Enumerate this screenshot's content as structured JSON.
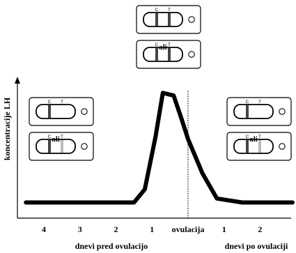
{
  "figure": {
    "y_axis_label": "koncentracije LH",
    "x_tick_labels": [
      "4",
      "3",
      "2",
      "1",
      "ovulacija",
      "1",
      "2"
    ],
    "left_axis_caption": "dnevi pred ovulacijo",
    "right_axis_caption": "dnevi po ovulaciji",
    "or_label": "ali",
    "test_window_labels": {
      "control": "C",
      "test": "T"
    }
  },
  "lh_curve": {
    "x": [
      -4.5,
      -1.5,
      -1.2,
      -0.9,
      -0.7,
      -0.4,
      -0.2,
      0,
      0.4,
      0.8,
      1.5,
      2.9
    ],
    "y": [
      0.5,
      0.5,
      1.5,
      5.5,
      8.8,
      8.6,
      7.0,
      5.3,
      2.7,
      0.8,
      0.5,
      0.5
    ],
    "ovulation_x": 0,
    "xlim": [
      -4.6,
      2.9
    ],
    "ylim": [
      0,
      9.5
    ]
  },
  "test_strips": [
    {
      "group": "top",
      "stack": 0,
      "control_line": "dark",
      "test_line": "dark"
    },
    {
      "group": "top",
      "stack": 1,
      "control_line": "dark",
      "test_line": "dark",
      "or_above": true
    },
    {
      "group": "left",
      "stack": 0,
      "control_line": "dark",
      "test_line": "none"
    },
    {
      "group": "left",
      "stack": 1,
      "control_line": "dark",
      "test_line": "light",
      "or_above": true
    },
    {
      "group": "right",
      "stack": 0,
      "control_line": "dark",
      "test_line": "none"
    },
    {
      "group": "right",
      "stack": 1,
      "control_line": "dark",
      "test_line": "light",
      "or_above": true
    }
  ],
  "colors": {
    "line": "#000000",
    "faint_line": "#bbbbbb",
    "dark_band": "#444444"
  }
}
